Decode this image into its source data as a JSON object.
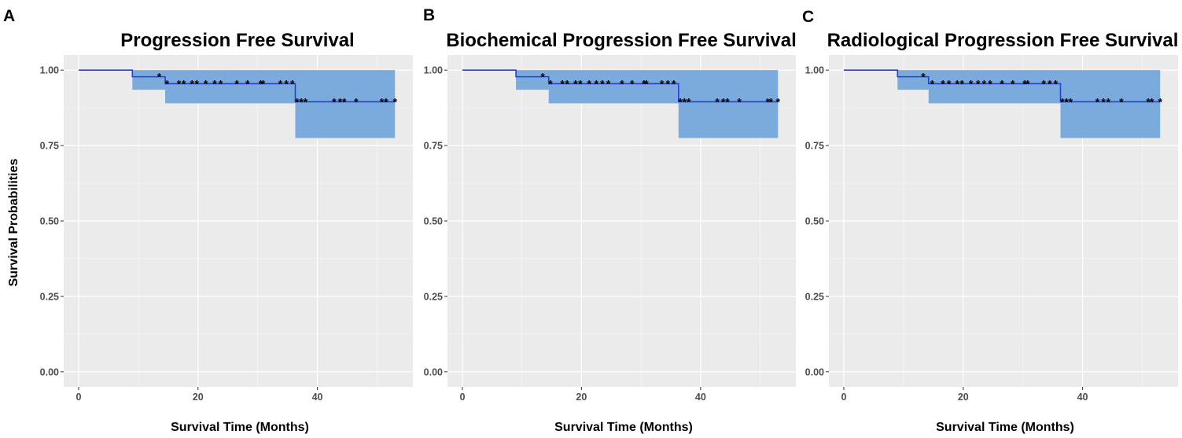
{
  "chart_data": [
    {
      "panel": "A",
      "type": "line",
      "subtype": "kaplan-meier",
      "title": "Progression Free Survival",
      "xlabel": "Survival Time (Months)",
      "ylabel": "Survival Probabilities",
      "xlim": [
        -2.5,
        56
      ],
      "ylim": [
        -0.05,
        1.05
      ],
      "xticks": [
        0,
        20,
        40
      ],
      "yticks": [
        0.0,
        0.25,
        0.5,
        0.75,
        1.0
      ],
      "ytick_labels": [
        "0.00",
        "0.25",
        "0.50",
        "0.75",
        "1.00"
      ],
      "colors": {
        "line": "#2840d8",
        "ci": "#7aabdc",
        "background": "#ebebeb",
        "grid": "#ffffff"
      },
      "survival": [
        {
          "t": 0,
          "s": 1.0,
          "lo": 1.0,
          "hi": 1.0
        },
        {
          "t": 9,
          "s": 0.978,
          "lo": 0.935,
          "hi": 1.0
        },
        {
          "t": 14.5,
          "s": 0.955,
          "lo": 0.89,
          "hi": 1.0
        },
        {
          "t": 36.3,
          "s": 0.895,
          "lo": 0.775,
          "hi": 1.0
        }
      ],
      "t_end": 53,
      "censored": [
        {
          "t": 13.5,
          "s": 0.978
        },
        {
          "t": 14.8,
          "s": 0.955
        },
        {
          "t": 16.8,
          "s": 0.955
        },
        {
          "t": 17.6,
          "s": 0.955
        },
        {
          "t": 19,
          "s": 0.955
        },
        {
          "t": 19.8,
          "s": 0.955
        },
        {
          "t": 21.3,
          "s": 0.955
        },
        {
          "t": 22.8,
          "s": 0.955
        },
        {
          "t": 23.8,
          "s": 0.955
        },
        {
          "t": 26.5,
          "s": 0.955
        },
        {
          "t": 28.3,
          "s": 0.955
        },
        {
          "t": 30.5,
          "s": 0.955
        },
        {
          "t": 30.9,
          "s": 0.955
        },
        {
          "t": 33.8,
          "s": 0.955
        },
        {
          "t": 34.8,
          "s": 0.955
        },
        {
          "t": 35.8,
          "s": 0.955
        },
        {
          "t": 36.6,
          "s": 0.895
        },
        {
          "t": 37.3,
          "s": 0.895
        },
        {
          "t": 38,
          "s": 0.895
        },
        {
          "t": 42.8,
          "s": 0.895
        },
        {
          "t": 43.8,
          "s": 0.895
        },
        {
          "t": 44.5,
          "s": 0.895
        },
        {
          "t": 46.5,
          "s": 0.895
        },
        {
          "t": 50.8,
          "s": 0.895
        },
        {
          "t": 51.5,
          "s": 0.895
        },
        {
          "t": 53,
          "s": 0.895
        }
      ]
    },
    {
      "panel": "B",
      "type": "line",
      "subtype": "kaplan-meier",
      "title": "Biochemical Progression Free Survival",
      "xlabel": "Survival Time (Months)",
      "ylabel": "",
      "xlim": [
        -2.5,
        56
      ],
      "ylim": [
        -0.05,
        1.05
      ],
      "xticks": [
        0,
        20,
        40
      ],
      "yticks": [
        0.0,
        0.25,
        0.5,
        0.75,
        1.0
      ],
      "ytick_labels": [
        "0.00",
        "0.25",
        "0.50",
        "0.75",
        "1.00"
      ],
      "colors": {
        "line": "#2840d8",
        "ci": "#7aabdc",
        "background": "#ebebeb",
        "grid": "#ffffff"
      },
      "survival": [
        {
          "t": 0,
          "s": 1.0,
          "lo": 1.0,
          "hi": 1.0
        },
        {
          "t": 9,
          "s": 0.978,
          "lo": 0.935,
          "hi": 1.0
        },
        {
          "t": 14.5,
          "s": 0.955,
          "lo": 0.89,
          "hi": 1.0
        },
        {
          "t": 36.3,
          "s": 0.895,
          "lo": 0.775,
          "hi": 1.0
        }
      ],
      "t_end": 53,
      "censored": [
        {
          "t": 13.5,
          "s": 0.978
        },
        {
          "t": 14.8,
          "s": 0.955
        },
        {
          "t": 16.8,
          "s": 0.955
        },
        {
          "t": 17.6,
          "s": 0.955
        },
        {
          "t": 19,
          "s": 0.955
        },
        {
          "t": 19.8,
          "s": 0.955
        },
        {
          "t": 21.3,
          "s": 0.955
        },
        {
          "t": 22.5,
          "s": 0.955
        },
        {
          "t": 23.5,
          "s": 0.955
        },
        {
          "t": 24.5,
          "s": 0.955
        },
        {
          "t": 26.8,
          "s": 0.955
        },
        {
          "t": 28.5,
          "s": 0.955
        },
        {
          "t": 30.5,
          "s": 0.955
        },
        {
          "t": 30.9,
          "s": 0.955
        },
        {
          "t": 33.5,
          "s": 0.955
        },
        {
          "t": 34.5,
          "s": 0.955
        },
        {
          "t": 35.5,
          "s": 0.955
        },
        {
          "t": 36.6,
          "s": 0.895
        },
        {
          "t": 37.3,
          "s": 0.895
        },
        {
          "t": 38,
          "s": 0.895
        },
        {
          "t": 42.8,
          "s": 0.895
        },
        {
          "t": 43.8,
          "s": 0.895
        },
        {
          "t": 44.5,
          "s": 0.895
        },
        {
          "t": 46.5,
          "s": 0.895
        },
        {
          "t": 51.3,
          "s": 0.895
        },
        {
          "t": 51.8,
          "s": 0.895
        },
        {
          "t": 53,
          "s": 0.895
        }
      ]
    },
    {
      "panel": "C",
      "type": "line",
      "subtype": "kaplan-meier",
      "title": "Radiological Progression Free Survival",
      "xlabel": "Survival Time (Months)",
      "ylabel": "",
      "xlim": [
        -2.5,
        56
      ],
      "ylim": [
        -0.05,
        1.05
      ],
      "xticks": [
        0,
        20,
        40
      ],
      "yticks": [
        0.0,
        0.25,
        0.5,
        0.75,
        1.0
      ],
      "ytick_labels": [
        "0.00",
        "0.25",
        "0.50",
        "0.75",
        "1.00"
      ],
      "colors": {
        "line": "#2840d8",
        "ci": "#7aabdc",
        "background": "#ebebeb",
        "grid": "#ffffff"
      },
      "survival": [
        {
          "t": 0,
          "s": 1.0,
          "lo": 1.0,
          "hi": 1.0
        },
        {
          "t": 9,
          "s": 0.978,
          "lo": 0.935,
          "hi": 1.0
        },
        {
          "t": 14.2,
          "s": 0.955,
          "lo": 0.89,
          "hi": 1.0
        },
        {
          "t": 36.3,
          "s": 0.895,
          "lo": 0.775,
          "hi": 1.0
        }
      ],
      "t_end": 53,
      "censored": [
        {
          "t": 13.3,
          "s": 0.978
        },
        {
          "t": 14.8,
          "s": 0.955
        },
        {
          "t": 16.6,
          "s": 0.955
        },
        {
          "t": 17.6,
          "s": 0.955
        },
        {
          "t": 19,
          "s": 0.955
        },
        {
          "t": 19.8,
          "s": 0.955
        },
        {
          "t": 21.3,
          "s": 0.955
        },
        {
          "t": 22.5,
          "s": 0.955
        },
        {
          "t": 23.5,
          "s": 0.955
        },
        {
          "t": 24.5,
          "s": 0.955
        },
        {
          "t": 26.5,
          "s": 0.955
        },
        {
          "t": 28.3,
          "s": 0.955
        },
        {
          "t": 30.3,
          "s": 0.955
        },
        {
          "t": 30.8,
          "s": 0.955
        },
        {
          "t": 33.5,
          "s": 0.955
        },
        {
          "t": 34.5,
          "s": 0.955
        },
        {
          "t": 35.5,
          "s": 0.955
        },
        {
          "t": 36.6,
          "s": 0.895
        },
        {
          "t": 37.3,
          "s": 0.895
        },
        {
          "t": 38,
          "s": 0.895
        },
        {
          "t": 42.5,
          "s": 0.895
        },
        {
          "t": 43.5,
          "s": 0.895
        },
        {
          "t": 44.3,
          "s": 0.895
        },
        {
          "t": 46.5,
          "s": 0.895
        },
        {
          "t": 51,
          "s": 0.895
        },
        {
          "t": 51.6,
          "s": 0.895
        },
        {
          "t": 53,
          "s": 0.895
        }
      ]
    }
  ]
}
